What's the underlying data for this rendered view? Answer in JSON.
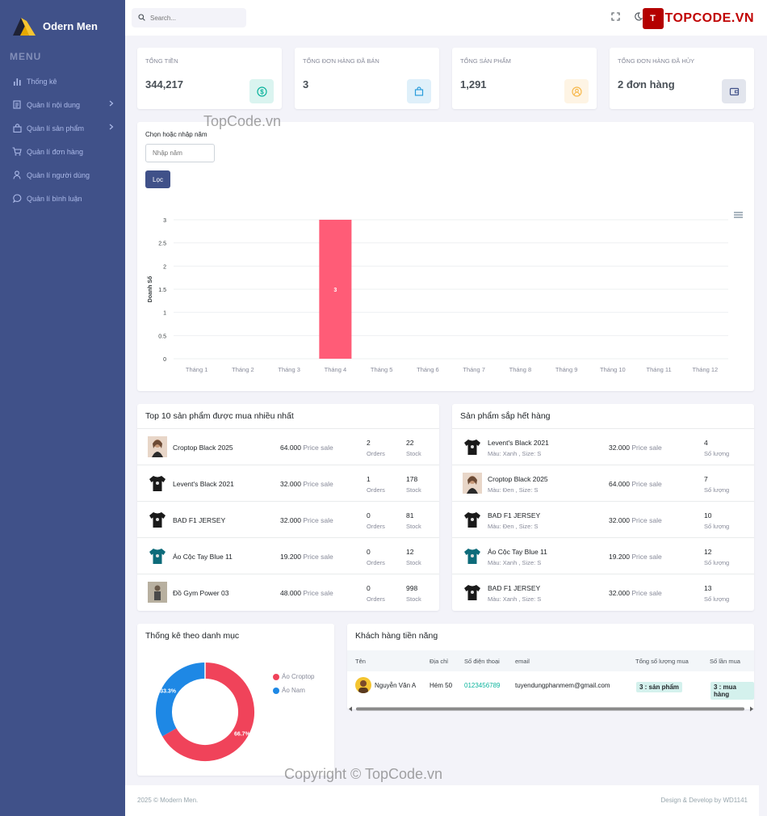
{
  "brand": {
    "name": "Odern Men",
    "menu_title": "MENU"
  },
  "sidebar": {
    "items": [
      {
        "label": "Thống kê",
        "icon": "bar-chart-icon",
        "chevron": false
      },
      {
        "label": "Quản lí nội dung",
        "icon": "document-icon",
        "chevron": true
      },
      {
        "label": "Quản lí sản phẩm",
        "icon": "bag-icon",
        "chevron": true
      },
      {
        "label": "Quản lí đơn hàng",
        "icon": "cart-icon",
        "chevron": false
      },
      {
        "label": "Quản lí người dùng",
        "icon": "user-icon",
        "chevron": false
      },
      {
        "label": "Quản lí bình luận",
        "icon": "comment-icon",
        "chevron": false
      }
    ]
  },
  "topbar": {
    "search_placeholder": "Search...",
    "topcode_badge": "T",
    "topcode_text": "TOPCODE.VN"
  },
  "stats": [
    {
      "label": "TỔNG TIỀN",
      "value": "344,217",
      "icon": "dollar-icon",
      "color": "#0ab39c",
      "bg": "#daf4f0"
    },
    {
      "label": "TỔNG ĐƠN HÀNG ĐÃ BÁN",
      "value": "3",
      "icon": "shopping-bag-icon",
      "color": "#299cdb",
      "bg": "#dff0fa"
    },
    {
      "label": "TỔNG SẢN PHẨM",
      "value": "1,291",
      "icon": "user-circle-icon",
      "color": "#f7b84b",
      "bg": "#fef4e4"
    },
    {
      "label": "TỔNG ĐƠN HÀNG ĐÃ HỦY",
      "value": "2 đơn hàng",
      "icon": "wallet-icon",
      "color": "#405189",
      "bg": "#e2e5ed"
    }
  ],
  "filter": {
    "label": "Chọn hoặc nhập năm",
    "placeholder": "Nhập năm",
    "button": "Lọc"
  },
  "chart_data": {
    "type": "bar",
    "categories": [
      "Tháng 1",
      "Tháng 2",
      "Tháng 3",
      "Tháng 4",
      "Tháng 5",
      "Tháng 6",
      "Tháng 7",
      "Tháng 8",
      "Tháng 9",
      "Tháng 10",
      "Tháng 11",
      "Tháng 12"
    ],
    "values": [
      0,
      0,
      0,
      3,
      0,
      0,
      0,
      0,
      0,
      0,
      0,
      0
    ],
    "ylabel": "Doanh Số",
    "ylim": [
      0,
      3
    ],
    "yticks": [
      "0",
      "0.5",
      "1",
      "1.5",
      "2",
      "2.5",
      "3"
    ],
    "bar_color": "#ff5c77",
    "grid": true
  },
  "top_products": {
    "title": "Top 10 sản phẩm được mua nhiều nhất",
    "price_label": "Price sale",
    "orders_label": "Orders",
    "stock_label": "Stock",
    "rows": [
      {
        "name": "Croptop Black 2025",
        "price": "64.000",
        "orders": "2",
        "stock": "22",
        "thumb": "photo"
      },
      {
        "name": "Levent's Black 2021",
        "price": "32.000",
        "orders": "1",
        "stock": "178",
        "thumb": "tshirt"
      },
      {
        "name": "BAD F1 JERSEY",
        "price": "32.000",
        "orders": "0",
        "stock": "81",
        "thumb": "tshirt"
      },
      {
        "name": "Áo Cộc Tay Blue 11",
        "price": "19.200",
        "orders": "0",
        "stock": "12",
        "thumb": "tshirt-teal"
      },
      {
        "name": "Đồ Gym Power 03",
        "price": "48.000",
        "orders": "0",
        "stock": "998",
        "thumb": "photo-gray"
      }
    ]
  },
  "low_stock": {
    "title": "Sản phẩm sắp hết hàng",
    "price_label": "Price sale",
    "qty_label": "Số lượng",
    "rows": [
      {
        "name": "Levent's Black 2021",
        "variant": "Màu: Xanh , Size: S",
        "price": "32.000",
        "qty": "4",
        "thumb": "tshirt"
      },
      {
        "name": "Croptop Black 2025",
        "variant": "Màu: Đen , Size: S",
        "price": "64.000",
        "qty": "7",
        "thumb": "photo"
      },
      {
        "name": "BAD F1 JERSEY",
        "variant": "Màu: Đen , Size: S",
        "price": "32.000",
        "qty": "10",
        "thumb": "tshirt"
      },
      {
        "name": "Áo Cộc Tay Blue 11",
        "variant": "Màu: Xanh , Size: S",
        "price": "19.200",
        "qty": "12",
        "thumb": "tshirt-teal"
      },
      {
        "name": "BAD F1 JERSEY",
        "variant": "Màu: Xanh , Size: S",
        "price": "32.000",
        "qty": "13",
        "thumb": "tshirt"
      }
    ]
  },
  "category_stats": {
    "title": "Thống kê theo danh mục",
    "chart_data": {
      "type": "pie",
      "labels": [
        "Áo Croptop",
        "Áo Nam"
      ],
      "values": [
        66.7,
        33.3
      ],
      "value_labels": [
        "66.7%",
        "33.3%"
      ],
      "colors": [
        "#f0435a",
        "#1e88e5"
      ],
      "legend": "right"
    }
  },
  "customers": {
    "title": "Khách hàng tiền năng",
    "headers": [
      "Tên",
      "Địa chỉ",
      "Số điện thoại",
      "email",
      "Tổng số lượng mua",
      "Số lần mua"
    ],
    "rows": [
      {
        "name": "Nguyễn Văn A",
        "address": "Hém 50",
        "phone": "0123456789",
        "email": "tuyendungphanmem@gmail.com",
        "total_qty": "3 : sản phẩm",
        "purchases": "3 : mua hàng"
      }
    ]
  },
  "footer": {
    "left": "2025 © Modern Men.",
    "right": "Design & Develop by WD1141"
  },
  "watermarks": [
    "TopCode.vn",
    "Copyright © TopCode.vn"
  ]
}
